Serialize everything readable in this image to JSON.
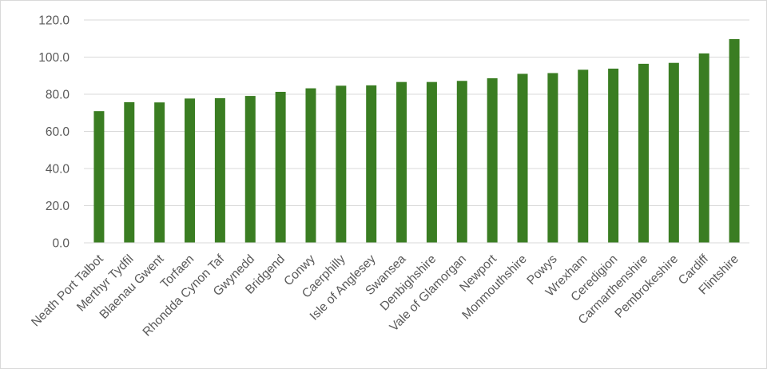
{
  "chart_data": {
    "type": "bar",
    "title": "",
    "xlabel": "",
    "ylabel": "",
    "categories": [
      "Neath Port Talbot",
      "Merthyr Tydfil",
      "Blaenau Gwent",
      "Torfaen",
      "Rhondda Cynon Taf",
      "Gwynedd",
      "Bridgend",
      "Conwy",
      "Caerphilly",
      "Isle of Anglesey",
      "Swansea",
      "Denbighshire",
      "Vale of Glamorgan",
      "Newport",
      "Monmouthshire",
      "Powys",
      "Wrexham",
      "Ceredigion",
      "Carmarthenshire",
      "Pembrokeshire",
      "Cardiff",
      "Flintshire"
    ],
    "values": [
      70.9,
      75.7,
      75.6,
      77.7,
      77.9,
      79.1,
      81.3,
      83.2,
      84.6,
      84.8,
      86.6,
      86.6,
      87.2,
      88.6,
      91.0,
      91.4,
      93.2,
      93.8,
      96.4,
      96.9,
      102.0,
      109.7
    ],
    "ylim": [
      0,
      120
    ],
    "yticks": [
      "0.0",
      "20.0",
      "40.0",
      "60.0",
      "80.0",
      "100.0",
      "120.0"
    ],
    "grid": true,
    "legend": "none",
    "colors": {
      "bar": "#3a7d22",
      "grid": "#d9d9d9",
      "text": "#595959"
    }
  }
}
